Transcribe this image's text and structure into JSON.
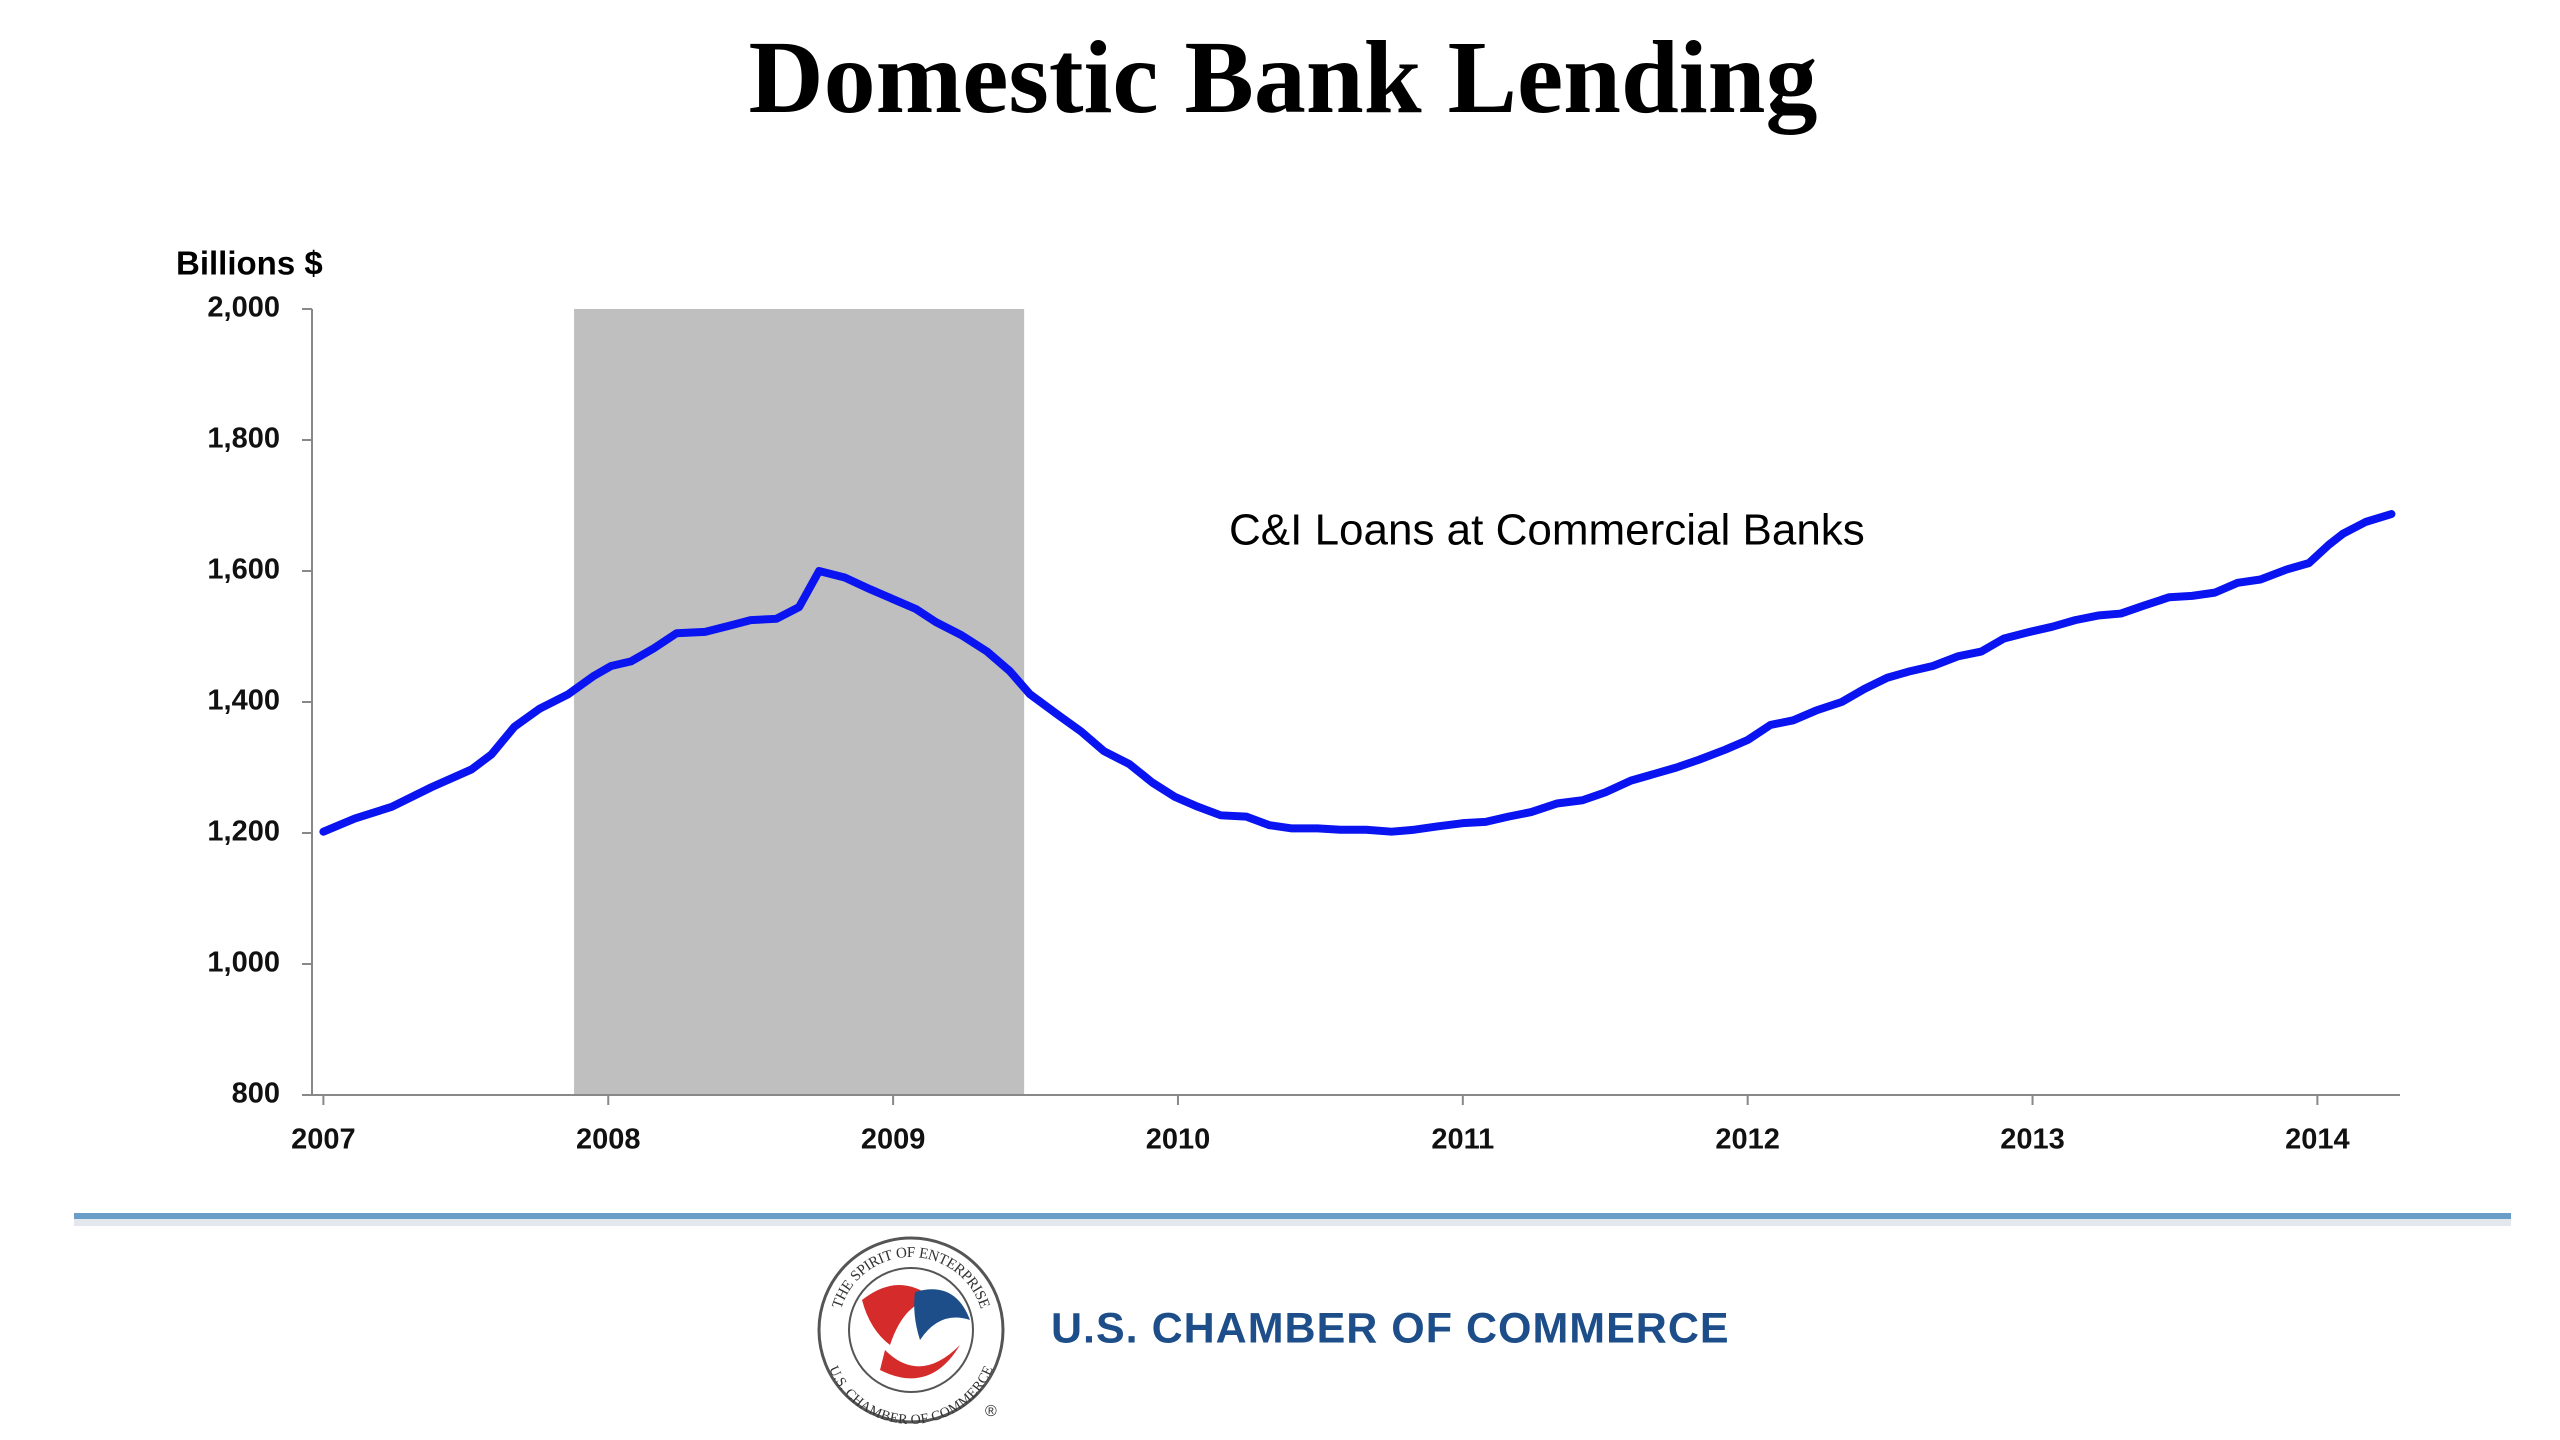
{
  "chart_data": {
    "type": "line",
    "title": "Domestic Bank Lending",
    "ylabel": "Billions $",
    "x": [
      2007.0,
      2007.11,
      2007.24,
      2007.38,
      2007.52,
      2007.59,
      2007.67,
      2007.76,
      2007.86,
      2007.95,
      2008.01,
      2008.08,
      2008.16,
      2008.24,
      2008.34,
      2008.43,
      2008.5,
      2008.59,
      2008.67,
      2008.74,
      2008.83,
      2008.92,
      2009.0,
      2009.08,
      2009.15,
      2009.24,
      2009.33,
      2009.41,
      2009.48,
      2009.58,
      2009.66,
      2009.74,
      2009.83,
      2009.91,
      2009.99,
      2010.07,
      2010.15,
      2010.24,
      2010.32,
      2010.4,
      2010.49,
      2010.57,
      2010.66,
      2010.75,
      2010.83,
      2010.91,
      2011.0,
      2011.08,
      2011.16,
      2011.24,
      2011.33,
      2011.42,
      2011.5,
      2011.59,
      2011.67,
      2011.75,
      2011.83,
      2011.92,
      2012.0,
      2012.08,
      2012.16,
      2012.24,
      2012.33,
      2012.41,
      2012.49,
      2012.57,
      2012.65,
      2012.74,
      2012.82,
      2012.9,
      2012.99,
      2013.07,
      2013.15,
      2013.23,
      2013.31,
      2013.39,
      2013.48,
      2013.56,
      2013.64,
      2013.72,
      2013.8,
      2013.89,
      2013.97,
      2014.04,
      2014.09,
      2014.17,
      2014.26
    ],
    "series": [
      {
        "name": "C&I Loans at Commercial Banks",
        "color": "#0a14f0",
        "values": [
          1202,
          1222,
          1240,
          1270,
          1297,
          1320,
          1362,
          1390,
          1412,
          1440,
          1455,
          1462,
          1482,
          1505,
          1507,
          1517,
          1525,
          1527,
          1545,
          1600,
          1590,
          1572,
          1557,
          1542,
          1522,
          1502,
          1477,
          1447,
          1412,
          1380,
          1355,
          1325,
          1305,
          1277,
          1255,
          1240,
          1227,
          1225,
          1212,
          1207,
          1207,
          1205,
          1205,
          1202,
          1205,
          1210,
          1215,
          1217,
          1225,
          1232,
          1245,
          1250,
          1262,
          1280,
          1290,
          1300,
          1312,
          1327,
          1342,
          1365,
          1372,
          1387,
          1400,
          1420,
          1437,
          1447,
          1455,
          1470,
          1477,
          1497,
          1507,
          1515,
          1525,
          1532,
          1535,
          1547,
          1560,
          1562,
          1567,
          1582,
          1587,
          1602,
          1612,
          1640,
          1657,
          1675,
          1687
        ]
      }
    ],
    "shading": {
      "x": [
        2007.88,
        2009.46
      ],
      "color": "#bfbfbf"
    },
    "xlim": [
      2006.96,
      2014.29
    ],
    "xticks": [
      2007,
      2008,
      2009,
      2010,
      2011,
      2012,
      2013,
      2014
    ],
    "ylim": [
      800,
      2000
    ],
    "yticks": [
      {
        "value": 800,
        "label": "800"
      },
      {
        "value": 1000,
        "label": "1,000"
      },
      {
        "value": 1200,
        "label": "1,200"
      },
      {
        "value": 1400,
        "label": "1,400"
      },
      {
        "value": 1600,
        "label": "1,600"
      },
      {
        "value": 1800,
        "label": "1,800"
      },
      {
        "value": 2000,
        "label": "2,000"
      }
    ],
    "grid": false
  },
  "footer": {
    "organization": "U.S. CHAMBER OF COMMERCE",
    "logo_top": "THE SPIRIT OF ENTERPRISE",
    "logo_bottom": "U.S. CHAMBER OF COMMERCE",
    "registered": "®"
  }
}
